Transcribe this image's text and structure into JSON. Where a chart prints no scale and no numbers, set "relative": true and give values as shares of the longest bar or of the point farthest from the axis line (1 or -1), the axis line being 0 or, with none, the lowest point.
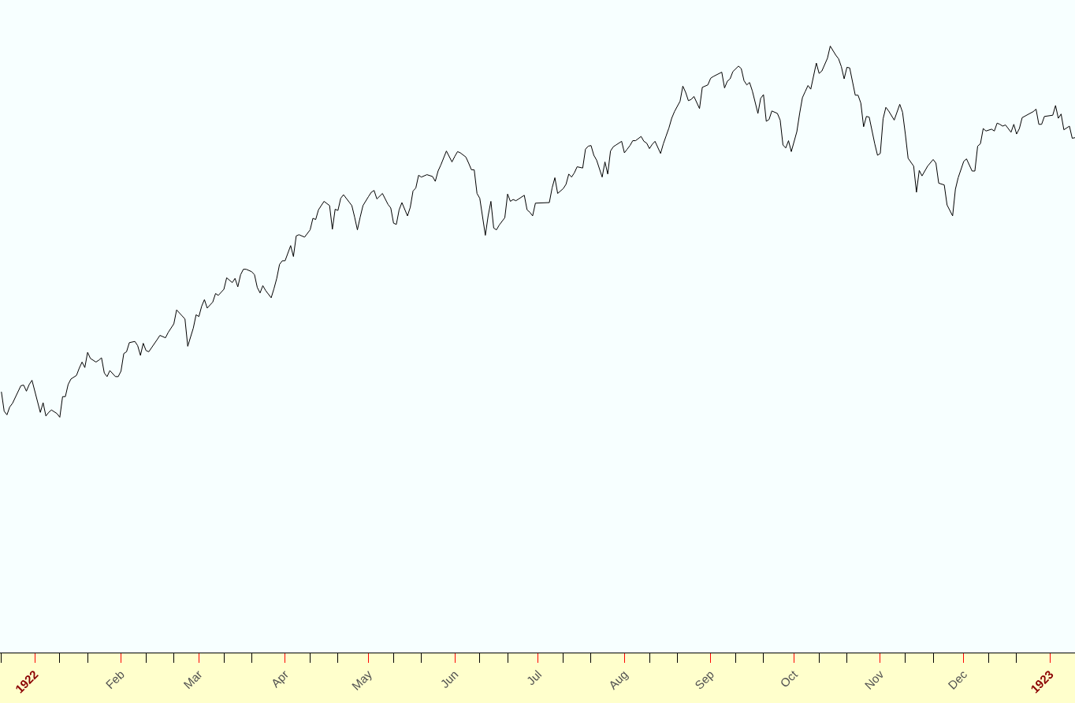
{
  "chart_data": {
    "type": "line",
    "relative": true,
    "xlim": [
      "1921-12-19T12:00",
      "1923-01-10"
    ],
    "xticks": [
      {
        "value": "1921-12-20",
        "label": null
      },
      {
        "value": "1922-01-01",
        "label": "1922"
      },
      {
        "value": "1922-01-10",
        "label": null
      },
      {
        "value": "1922-01-20",
        "label": null
      },
      {
        "value": "1922-02-01",
        "label": "Feb"
      },
      {
        "value": "1922-02-10",
        "label": null
      },
      {
        "value": "1922-02-20",
        "label": null
      },
      {
        "value": "1922-03-01",
        "label": "Mar"
      },
      {
        "value": "1922-03-10",
        "label": null
      },
      {
        "value": "1922-03-20",
        "label": null
      },
      {
        "value": "1922-04-01",
        "label": "Apr"
      },
      {
        "value": "1922-04-10",
        "label": null
      },
      {
        "value": "1922-04-20",
        "label": null
      },
      {
        "value": "1922-05-01",
        "label": "May"
      },
      {
        "value": "1922-05-10",
        "label": null
      },
      {
        "value": "1922-05-20",
        "label": null
      },
      {
        "value": "1922-06-01",
        "label": "Jun"
      },
      {
        "value": "1922-06-10",
        "label": null
      },
      {
        "value": "1922-06-20",
        "label": null
      },
      {
        "value": "1922-07-01",
        "label": "Jul"
      },
      {
        "value": "1922-07-10",
        "label": null
      },
      {
        "value": "1922-07-20",
        "label": null
      },
      {
        "value": "1922-08-01",
        "label": "Aug"
      },
      {
        "value": "1922-08-10",
        "label": null
      },
      {
        "value": "1922-08-20",
        "label": null
      },
      {
        "value": "1922-09-01",
        "label": "Sep"
      },
      {
        "value": "1922-09-10",
        "label": null
      },
      {
        "value": "1922-09-20",
        "label": null
      },
      {
        "value": "1922-10-01",
        "label": "Oct"
      },
      {
        "value": "1922-10-10",
        "label": null
      },
      {
        "value": "1922-10-20",
        "label": null
      },
      {
        "value": "1922-11-01",
        "label": "Nov"
      },
      {
        "value": "1922-11-10",
        "label": null
      },
      {
        "value": "1922-11-20",
        "label": null
      },
      {
        "value": "1922-12-01",
        "label": "Dec"
      },
      {
        "value": "1922-12-10",
        "label": null
      },
      {
        "value": "1922-12-20",
        "label": null
      },
      {
        "value": "1923-01-01",
        "label": "1923"
      },
      {
        "value": "1923-01-10",
        "label": null
      }
    ],
    "x": [
      "1921-12-20",
      "1921-12-21",
      "1921-12-22",
      "1921-12-23",
      "1921-12-24",
      "1921-12-27",
      "1921-12-28",
      "1921-12-29",
      "1921-12-30",
      "1921-12-31",
      "1922-01-03",
      "1922-01-04",
      "1922-01-05",
      "1922-01-06",
      "1922-01-07",
      "1922-01-09",
      "1922-01-10",
      "1922-01-11",
      "1922-01-12",
      "1922-01-13",
      "1922-01-14",
      "1922-01-16",
      "1922-01-17",
      "1922-01-18",
      "1922-01-19",
      "1922-01-20",
      "1922-01-21",
      "1922-01-23",
      "1922-01-24",
      "1922-01-25",
      "1922-01-26",
      "1922-01-27",
      "1922-01-28",
      "1922-01-30",
      "1922-01-31",
      "1922-02-01",
      "1922-02-02",
      "1922-02-03",
      "1922-02-04",
      "1922-02-06",
      "1922-02-07",
      "1922-02-08",
      "1922-02-09",
      "1922-02-10",
      "1922-02-11",
      "1922-02-14",
      "1922-02-15",
      "1922-02-17",
      "1922-02-18",
      "1922-02-20",
      "1922-02-21",
      "1922-02-23",
      "1922-02-24",
      "1922-02-25",
      "1922-02-27",
      "1922-02-28",
      "1922-03-01",
      "1922-03-02",
      "1922-03-03",
      "1922-03-04",
      "1922-03-06",
      "1922-03-07",
      "1922-03-08",
      "1922-03-10",
      "1922-03-11",
      "1922-03-13",
      "1922-03-14",
      "1922-03-15",
      "1922-03-16",
      "1922-03-17",
      "1922-03-18",
      "1922-03-20",
      "1922-03-21",
      "1922-03-22",
      "1922-03-23",
      "1922-03-24",
      "1922-03-25",
      "1922-03-27",
      "1922-03-28",
      "1922-03-29",
      "1922-03-30",
      "1922-03-31",
      "1922-04-01",
      "1922-04-03",
      "1922-04-04",
      "1922-04-05",
      "1922-04-06",
      "1922-04-08",
      "1922-04-10",
      "1922-04-11",
      "1922-04-12",
      "1922-04-13",
      "1922-04-15",
      "1922-04-17",
      "1922-04-18",
      "1922-04-19",
      "1922-04-20",
      "1922-04-21",
      "1922-04-22",
      "1922-04-24",
      "1922-04-25",
      "1922-04-26",
      "1922-04-27",
      "1922-04-28",
      "1922-04-29",
      "1922-05-01",
      "1922-05-02",
      "1922-05-03",
      "1922-05-04",
      "1922-05-06",
      "1922-05-08",
      "1922-05-09",
      "1922-05-10",
      "1922-05-11",
      "1922-05-12",
      "1922-05-13",
      "1922-05-15",
      "1922-05-16",
      "1922-05-17",
      "1922-05-18",
      "1922-05-19",
      "1922-05-20",
      "1922-05-22",
      "1922-05-24",
      "1922-05-25",
      "1922-05-26",
      "1922-05-27",
      "1922-05-29",
      "1922-05-31",
      "1922-06-01",
      "1922-06-02",
      "1922-06-03",
      "1922-06-05",
      "1922-06-06",
      "1922-06-07",
      "1922-06-08",
      "1922-06-09",
      "1922-06-10",
      "1922-06-12",
      "1922-06-13",
      "1922-06-14",
      "1922-06-15",
      "1922-06-16",
      "1922-06-17",
      "1922-06-19",
      "1922-06-20",
      "1922-06-21",
      "1922-06-22",
      "1922-06-23",
      "1922-06-26",
      "1922-06-27",
      "1922-06-28",
      "1922-06-29",
      "1922-06-30",
      "1922-07-05",
      "1922-07-06",
      "1922-07-07",
      "1922-07-08",
      "1922-07-10",
      "1922-07-11",
      "1922-07-12",
      "1922-07-13",
      "1922-07-14",
      "1922-07-15",
      "1922-07-17",
      "1922-07-18",
      "1922-07-19",
      "1922-07-20",
      "1922-07-21",
      "1922-07-22",
      "1922-07-24",
      "1922-07-25",
      "1922-07-26",
      "1922-07-27",
      "1922-07-28",
      "1922-07-29",
      "1922-07-31",
      "1922-08-01",
      "1922-08-02",
      "1922-08-03",
      "1922-08-04",
      "1922-08-05",
      "1922-08-07",
      "1922-08-08",
      "1922-08-09",
      "1922-08-10",
      "1922-08-11",
      "1922-08-12",
      "1922-08-14",
      "1922-08-15",
      "1922-08-16",
      "1922-08-17",
      "1922-08-18",
      "1922-08-19",
      "1922-08-21",
      "1922-08-22",
      "1922-08-23",
      "1922-08-24",
      "1922-08-25",
      "1922-08-26",
      "1922-08-28",
      "1922-08-29",
      "1922-08-31",
      "1922-09-01",
      "1922-09-02",
      "1922-09-05",
      "1922-09-06",
      "1922-09-07",
      "1922-09-08",
      "1922-09-09",
      "1922-09-11",
      "1922-09-12",
      "1922-09-13",
      "1922-09-14",
      "1922-09-15",
      "1922-09-16",
      "1922-09-18",
      "1922-09-19",
      "1922-09-20",
      "1922-09-21",
      "1922-09-22",
      "1922-09-23",
      "1922-09-25",
      "1922-09-26",
      "1922-09-27",
      "1922-09-28",
      "1922-09-29",
      "1922-09-30",
      "1922-10-02",
      "1922-10-03",
      "1922-10-04",
      "1922-10-05",
      "1922-10-06",
      "1922-10-07",
      "1922-10-09",
      "1922-10-10",
      "1922-10-11",
      "1922-10-13",
      "1922-10-14",
      "1922-10-16",
      "1922-10-17",
      "1922-10-18",
      "1922-10-19",
      "1922-10-20",
      "1922-10-21",
      "1922-10-23",
      "1922-10-24",
      "1922-10-25",
      "1922-10-26",
      "1922-10-27",
      "1922-10-28",
      "1922-10-30",
      "1922-10-31",
      "1922-11-01",
      "1922-11-02",
      "1922-11-03",
      "1922-11-04",
      "1922-11-06",
      "1922-11-08",
      "1922-11-09",
      "1922-11-10",
      "1922-11-11",
      "1922-11-13",
      "1922-11-14",
      "1922-11-15",
      "1922-11-16",
      "1922-11-18",
      "1922-11-20",
      "1922-11-21",
      "1922-11-22",
      "1922-11-24",
      "1922-11-25",
      "1922-11-27",
      "1922-11-28",
      "1922-11-29",
      "1922-12-01",
      "1922-12-02",
      "1922-12-04",
      "1922-12-05",
      "1922-12-06",
      "1922-12-07",
      "1922-12-08",
      "1922-12-09",
      "1922-12-11",
      "1922-12-12",
      "1922-12-13",
      "1922-12-14",
      "1922-12-15",
      "1922-12-16",
      "1922-12-18",
      "1922-12-19",
      "1922-12-20",
      "1922-12-21",
      "1922-12-22",
      "1922-12-26",
      "1922-12-27",
      "1922-12-28",
      "1922-12-29",
      "1922-12-30",
      "1923-01-02",
      "1923-01-03",
      "1923-01-04",
      "1923-01-05",
      "1923-01-06",
      "1923-01-08",
      "1923-01-09",
      "1923-01-10"
    ],
    "series": [
      {
        "color": "#000000",
        "values": [
          0.43,
          0.398,
          0.392,
          0.405,
          0.411,
          0.44,
          0.441,
          0.431,
          0.442,
          0.449,
          0.396,
          0.412,
          0.39,
          0.396,
          0.4,
          0.394,
          0.388,
          0.422,
          0.422,
          0.442,
          0.451,
          0.457,
          0.469,
          0.479,
          0.47,
          0.495,
          0.485,
          0.479,
          0.482,
          0.486,
          0.461,
          0.455,
          0.465,
          0.455,
          0.455,
          0.464,
          0.493,
          0.496,
          0.511,
          0.513,
          0.506,
          0.49,
          0.51,
          0.498,
          0.496,
          0.516,
          0.523,
          0.519,
          0.528,
          0.542,
          0.565,
          0.555,
          0.55,
          0.505,
          0.535,
          0.557,
          0.554,
          0.571,
          0.582,
          0.568,
          0.578,
          0.592,
          0.589,
          0.599,
          0.618,
          0.61,
          0.617,
          0.603,
          0.623,
          0.632,
          0.632,
          0.628,
          0.623,
          0.602,
          0.593,
          0.605,
          0.597,
          0.585,
          0.6,
          0.617,
          0.64,
          0.646,
          0.646,
          0.671,
          0.653,
          0.687,
          0.689,
          0.685,
          0.697,
          0.716,
          0.714,
          0.73,
          0.744,
          0.737,
          0.698,
          0.731,
          0.729,
          0.749,
          0.755,
          0.743,
          0.737,
          0.718,
          0.697,
          0.718,
          0.737,
          0.752,
          0.759,
          0.762,
          0.748,
          0.757,
          0.739,
          0.733,
          0.708,
          0.706,
          0.73,
          0.742,
          0.72,
          0.734,
          0.761,
          0.766,
          0.787,
          0.784,
          0.788,
          0.785,
          0.777,
          0.794,
          0.804,
          0.827,
          0.809,
          0.818,
          0.826,
          0.824,
          0.817,
          0.807,
          0.796,
          0.796,
          0.757,
          0.749,
          0.688,
          0.72,
          0.744,
          0.7,
          0.697,
          0.705,
          0.717,
          0.756,
          0.744,
          0.747,
          0.745,
          0.754,
          0.73,
          0.726,
          0.72,
          0.741,
          0.742,
          0.766,
          0.783,
          0.757,
          0.765,
          0.772,
          0.789,
          0.784,
          0.791,
          0.801,
          0.799,
          0.83,
          0.835,
          0.836,
          0.82,
          0.812,
          0.784,
          0.809,
          0.789,
          0.827,
          0.834,
          0.837,
          0.843,
          0.824,
          0.83,
          0.836,
          0.844,
          0.844,
          0.851,
          0.843,
          0.84,
          0.831,
          0.838,
          0.843,
          0.823,
          0.839,
          0.852,
          0.865,
          0.881,
          0.892,
          0.909,
          0.934,
          0.924,
          0.91,
          0.912,
          0.917,
          0.897,
          0.932,
          0.936,
          0.947,
          0.95,
          0.957,
          0.931,
          0.942,
          0.946,
          0.958,
          0.967,
          0.963,
          0.943,
          0.936,
          0.94,
          0.926,
          0.889,
          0.914,
          0.92,
          0.876,
          0.879,
          0.893,
          0.889,
          0.878,
          0.837,
          0.832,
          0.844,
          0.826,
          0.859,
          0.889,
          0.915,
          0.925,
          0.935,
          0.929,
          0.972,
          0.955,
          0.959,
          0.98,
          1.0,
          0.985,
          0.979,
          0.966,
          0.946,
          0.965,
          0.964,
          0.919,
          0.919,
          0.906,
          0.867,
          0.884,
          0.883,
          0.839,
          0.82,
          0.823,
          0.88,
          0.899,
          0.893,
          0.878,
          0.904,
          0.891,
          0.855,
          0.815,
          0.802,
          0.759,
          0.795,
          0.786,
          0.802,
          0.813,
          0.807,
          0.774,
          0.771,
          0.738,
          0.72,
          0.764,
          0.783,
          0.81,
          0.814,
          0.794,
          0.794,
          0.835,
          0.839,
          0.864,
          0.86,
          0.863,
          0.86,
          0.873,
          0.871,
          0.868,
          0.87,
          0.858,
          0.871,
          0.855,
          0.864,
          0.882,
          0.892,
          0.896,
          0.871,
          0.871,
          0.884,
          0.886,
          0.902,
          0.881,
          0.888,
          0.862,
          0.868,
          0.848,
          0.849
        ]
      }
    ]
  }
}
